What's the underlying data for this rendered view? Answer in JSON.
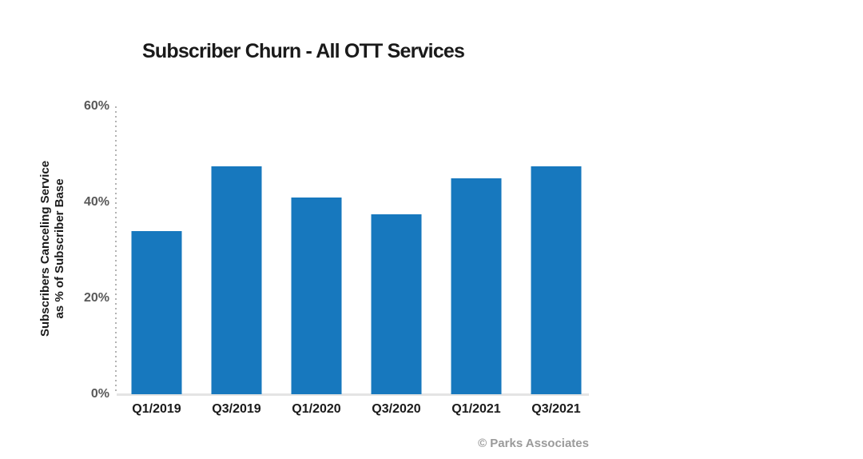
{
  "page": {
    "background_color": "#ffffff"
  },
  "header": {
    "title": "Subscriber Churn - All OTT Services"
  },
  "y_axis": {
    "title_line1": "Subscribers Canceling Service",
    "title_line2": "as % of Subscriber Base"
  },
  "footer": {
    "credit": "© Parks Associates"
  },
  "colors": {
    "bar_blue": "#1778BE",
    "tick_label_gray": "#595959",
    "text_black": "#1a1a1a",
    "footer_gray": "#9a9a9a",
    "baseline_gray": "#e4e4e4",
    "axis_dot_gray": "#b3b3b3"
  },
  "chart_data": {
    "type": "bar",
    "title": "Subscriber Churn - All OTT Services",
    "categories": [
      "Q1/2019",
      "Q3/2019",
      "Q1/2020",
      "Q3/2020",
      "Q1/2021",
      "Q3/2021"
    ],
    "values": [
      34,
      47.5,
      41,
      37.5,
      45,
      47.5
    ],
    "xlabel": "",
    "ylabel": "Subscribers Canceling Service as % of Subscriber Base",
    "ylim": [
      0,
      60
    ],
    "yticks": [
      0,
      20,
      40,
      60
    ],
    "ytick_labels": [
      "0%",
      "20%",
      "40%",
      "60%"
    ],
    "unit": "percent",
    "bar_color": "#1778BE",
    "grid": false,
    "legend": false,
    "source": "© Parks Associates"
  }
}
